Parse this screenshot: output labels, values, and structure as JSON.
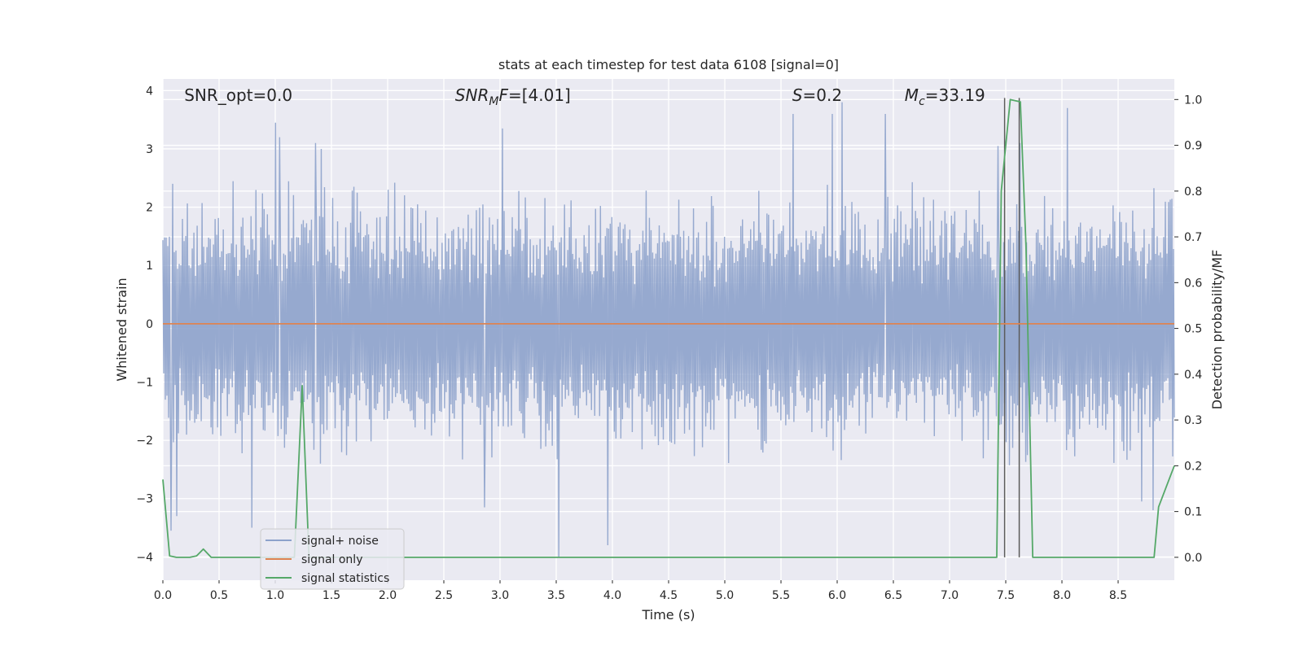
{
  "chart_data": {
    "type": "line",
    "title": "stats at each timestep for test data 6108 [signal=0]",
    "xlabel": "Time (s)",
    "ylabel": "Whitened strain",
    "y2label": "Detection probability/MF",
    "xlim": [
      0,
      9.0
    ],
    "ylim": [
      -4.4,
      4.2
    ],
    "y2lim": [
      -0.05,
      1.045
    ],
    "xticks": [
      0.0,
      0.5,
      1.0,
      1.5,
      2.0,
      2.5,
      3.0,
      3.5,
      4.0,
      4.5,
      5.0,
      5.5,
      6.0,
      6.5,
      7.0,
      7.5,
      8.0,
      8.5
    ],
    "xtick_labels": [
      "0.0",
      "0.5",
      "1.0",
      "1.5",
      "2.0",
      "2.5",
      "3.0",
      "3.5",
      "4.0",
      "4.5",
      "5.0",
      "5.5",
      "6.0",
      "6.5",
      "7.0",
      "7.5",
      "8.0",
      "8.5"
    ],
    "yticks": [
      -4,
      -3,
      -2,
      -1,
      0,
      1,
      2,
      3,
      4
    ],
    "ytick_labels": [
      "−4",
      "−3",
      "−2",
      "−1",
      "0",
      "1",
      "2",
      "3",
      "4"
    ],
    "y2ticks": [
      0.0,
      0.1,
      0.2,
      0.3,
      0.4,
      0.5,
      0.6,
      0.7,
      0.8,
      0.9,
      1.0
    ],
    "y2tick_labels": [
      "0.0",
      "0.1",
      "0.2",
      "0.3",
      "0.4",
      "0.5",
      "0.6",
      "0.7",
      "0.8",
      "0.9",
      "1.0"
    ],
    "grid": true,
    "legend_position": "lower-left",
    "annotations": [
      {
        "id": "snr-opt",
        "text": "SNR_opt=0.0",
        "x": 0.19
      },
      {
        "id": "snr-mf",
        "text": "SNR_MF=[4.01]",
        "x": 2.6,
        "math": "snrmf"
      },
      {
        "id": "s-value",
        "text": "S=0.2",
        "x": 5.6,
        "math": "italic-first"
      },
      {
        "id": "mc-value",
        "text": "M_c=33.19",
        "x": 6.6,
        "math": "subscript"
      }
    ],
    "vlines": [
      7.49,
      7.62
    ],
    "series": [
      {
        "name": "signal+ noise",
        "color": "#8da2cb",
        "kind": "noise",
        "typical_peak_abs": 2.2,
        "envelope_low": 0.6,
        "notable_spikes": [
          {
            "x": 0.07,
            "y": -3.55
          },
          {
            "x": 0.09,
            "y": 2.4
          },
          {
            "x": 0.12,
            "y": -3.3
          },
          {
            "x": 0.79,
            "y": -3.5
          },
          {
            "x": 1.0,
            "y": 3.45
          },
          {
            "x": 1.04,
            "y": 3.2
          },
          {
            "x": 1.36,
            "y": 3.1
          },
          {
            "x": 1.41,
            "y": 3.0
          },
          {
            "x": 2.86,
            "y": -3.15
          },
          {
            "x": 3.02,
            "y": 3.35
          },
          {
            "x": 3.52,
            "y": -4.0
          },
          {
            "x": 3.96,
            "y": -3.8
          },
          {
            "x": 5.61,
            "y": 3.6
          },
          {
            "x": 5.96,
            "y": 3.6
          },
          {
            "x": 6.04,
            "y": 3.8
          },
          {
            "x": 6.43,
            "y": 3.6
          },
          {
            "x": 7.43,
            "y": 3.05
          },
          {
            "x": 7.63,
            "y": 3.1
          },
          {
            "x": 8.05,
            "y": 3.7
          },
          {
            "x": 8.71,
            "y": -3.05
          },
          {
            "x": 8.81,
            "y": -3.2
          }
        ]
      },
      {
        "name": "signal only",
        "color": "#dd8452",
        "axis": "left",
        "x": [
          0.0,
          9.0
        ],
        "values": [
          0.0,
          0.0
        ]
      },
      {
        "name": "signal statistics",
        "color": "#55a868",
        "axis": "right",
        "x": [
          0.0,
          0.06,
          0.12,
          0.24,
          0.3,
          0.36,
          0.43,
          0.5,
          1.17,
          1.24,
          1.3,
          1.36,
          7.42,
          7.46,
          7.54,
          7.63,
          7.68,
          7.74,
          8.82,
          8.86,
          9.0
        ],
        "values": [
          0.17,
          0.003,
          0.0,
          0.0,
          0.003,
          0.018,
          0.0,
          0.0,
          0.0,
          0.375,
          0.0,
          0.0,
          0.0,
          0.8,
          1.0,
          0.995,
          0.68,
          0.0,
          0.0,
          0.11,
          0.2
        ]
      }
    ]
  }
}
